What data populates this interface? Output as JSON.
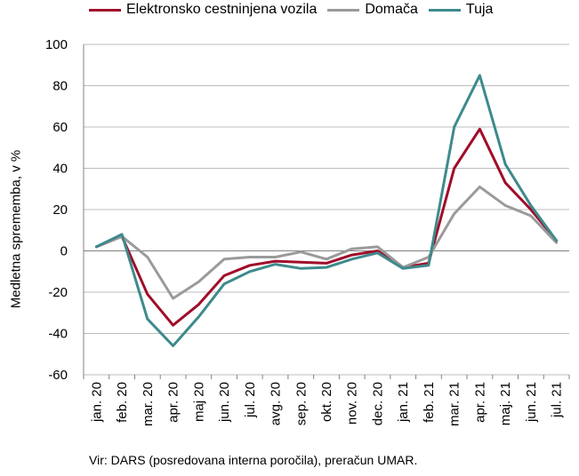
{
  "chart_data": {
    "type": "line",
    "ylabel": "Medletna sprememba, v %",
    "ylim": [
      -60,
      100
    ],
    "yticks": [
      -60,
      -40,
      -20,
      0,
      20,
      40,
      60,
      80,
      100
    ],
    "grid": true,
    "legend_position": "top",
    "categories": [
      "jan. 20",
      "feb. 20",
      "mar. 20",
      "apr. 20",
      "maj 20",
      "jun. 20",
      "jul. 20",
      "avg. 20",
      "sep. 20",
      "okt. 20",
      "nov. 20",
      "dec. 20",
      "jan. 21",
      "feb. 21",
      "mar. 21",
      "apr. 21",
      "maj. 21",
      "jun. 21",
      "jul. 21"
    ],
    "series": [
      {
        "name": "Elektronsko cestninjena vozila",
        "color": "#a00d2a",
        "values": [
          2,
          7,
          -21,
          -36,
          -26,
          -12,
          -7,
          -5,
          -5.5,
          -6,
          -2,
          0,
          -8,
          -6,
          40,
          59,
          33,
          20,
          5
        ]
      },
      {
        "name": "Domača",
        "color": "#9a9a9a",
        "values": [
          2,
          7,
          -3,
          -23,
          -15,
          -4,
          -3,
          -3,
          -0.5,
          -4,
          1,
          2,
          -8,
          -3,
          18,
          31,
          22,
          17,
          4
        ]
      },
      {
        "name": "Tuja",
        "color": "#3e8a8c",
        "values": [
          2,
          8,
          -33,
          -46,
          -32,
          -16,
          -10,
          -6.5,
          -8.5,
          -8,
          -4,
          -1,
          -8.5,
          -7,
          60,
          85,
          42,
          22,
          5
        ]
      }
    ]
  },
  "source": "Vir: DARS (posredovana interna poročila), preračun UMAR."
}
